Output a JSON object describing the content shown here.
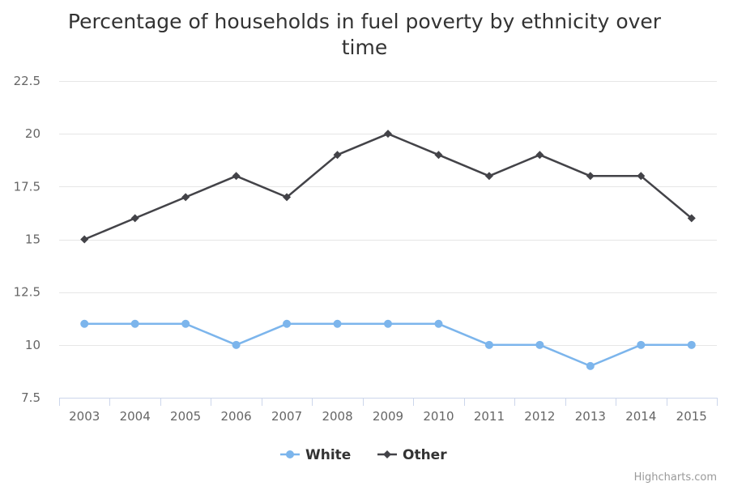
{
  "chart_data": {
    "type": "line",
    "title": "Percentage of households in fuel poverty by ethnicity over time",
    "title_lines": [
      "Percentage of households in fuel poverty by ethnicity over",
      "time"
    ],
    "categories": [
      "2003",
      "2004",
      "2005",
      "2006",
      "2007",
      "2008",
      "2009",
      "2010",
      "2011",
      "2012",
      "2013",
      "2014",
      "2015"
    ],
    "ylim": [
      7.5,
      22.5
    ],
    "yticks": [
      7.5,
      10,
      12.5,
      15,
      17.5,
      20,
      22.5
    ],
    "ytick_labels": [
      "7.5",
      "10",
      "12.5",
      "15",
      "17.5",
      "20",
      "22.5"
    ],
    "grid": true,
    "legend_position": "bottom-center",
    "series": [
      {
        "name": "White",
        "color": "#7cb5ec",
        "marker": "circle",
        "values": [
          11,
          11,
          11,
          10,
          11,
          11,
          11,
          11,
          10,
          10,
          9,
          10,
          10
        ]
      },
      {
        "name": "Other",
        "color": "#434348",
        "marker": "diamond",
        "values": [
          15,
          16,
          17,
          18,
          17,
          19,
          20,
          19,
          18,
          19,
          18,
          18,
          16
        ]
      }
    ],
    "credits": "Highcharts.com"
  }
}
